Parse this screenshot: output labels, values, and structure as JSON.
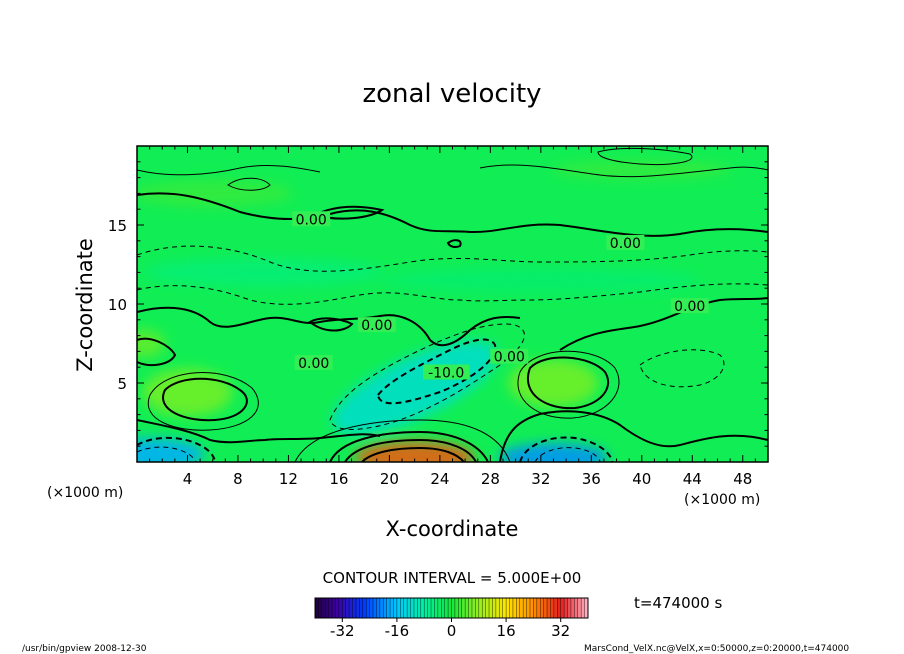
{
  "chart_data": {
    "type": "heatmap",
    "title": "zonal velocity",
    "xlabel": "X-coordinate",
    "ylabel": "Z-coordinate",
    "x_unit_label": "(×1000 m)",
    "y_unit_label": "(×1000 m)",
    "xlim": [
      0,
      50
    ],
    "ylim": [
      0,
      20
    ],
    "x_ticks": [
      4,
      8,
      12,
      16,
      20,
      24,
      28,
      32,
      36,
      40,
      44,
      48
    ],
    "y_ticks": [
      5,
      10,
      15
    ],
    "contour_interval_label": "CONTOUR INTERVAL = 5.000E+00",
    "contour_labels": [
      {
        "text": "0.00",
        "x": 13.8,
        "z": 15.3
      },
      {
        "text": "0.00",
        "x": 38.7,
        "z": 13.8
      },
      {
        "text": "0.00",
        "x": 43.8,
        "z": 9.8
      },
      {
        "text": "0.00",
        "x": 19.0,
        "z": 8.6
      },
      {
        "text": "0.00",
        "x": 14.0,
        "z": 6.2
      },
      {
        "text": "0.00",
        "x": 29.5,
        "z": 6.6
      },
      {
        "text": "-10.0",
        "x": 24.5,
        "z": 5.6
      }
    ],
    "features": [
      {
        "kind": "min",
        "x": 22,
        "z": 4.7,
        "value": -12
      },
      {
        "kind": "min",
        "x": 1,
        "z": 0.5,
        "value": -18
      },
      {
        "kind": "min",
        "x": 33,
        "z": 0.3,
        "value": -20
      },
      {
        "kind": "max",
        "x": 22,
        "z": 0.3,
        "value": 28
      },
      {
        "kind": "max",
        "x": 4,
        "z": 4.4,
        "value": 6
      },
      {
        "kind": "max",
        "x": 33,
        "z": 5.0,
        "value": 6
      },
      {
        "kind": "max",
        "x": 0.5,
        "z": 7.5,
        "value": 5
      }
    ],
    "colorbar": {
      "min": -40,
      "max": 40,
      "ticks": [
        -32,
        -16,
        0,
        16,
        32
      ]
    },
    "time_label": "t=474000 s"
  },
  "footer": {
    "left": "/usr/bin/gpview  2008-12-30",
    "right": "MarsCond_VelX.nc@VelX,x=0:50000,z=0:20000,t=474000"
  },
  "colors": {
    "background": "#00ee55",
    "contour": "#000000"
  }
}
